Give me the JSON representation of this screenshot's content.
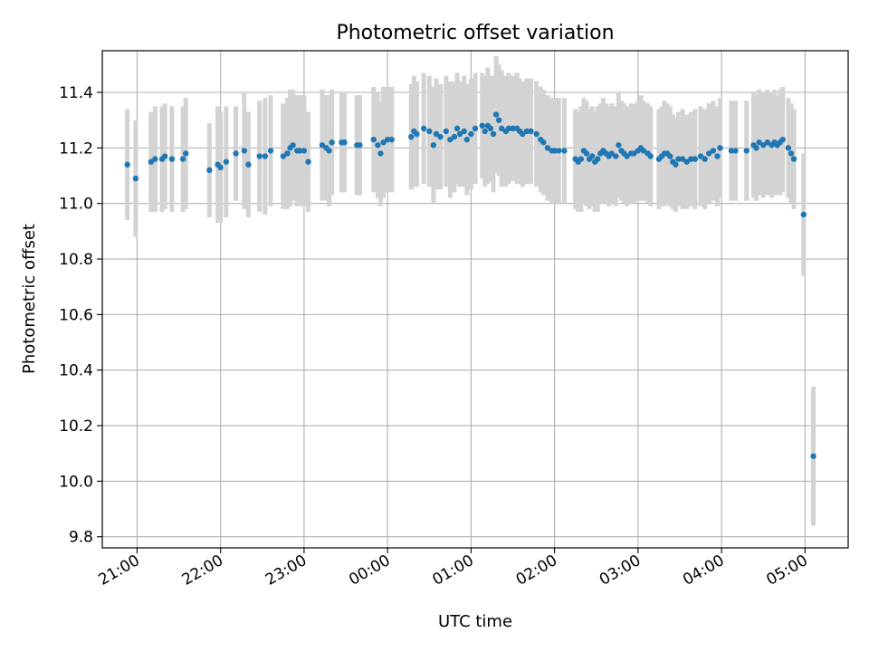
{
  "chart_data": {
    "type": "scatter",
    "title": "Photometric offset variation",
    "xlabel": "UTC time",
    "ylabel": "Photometric offset",
    "x_unit": "UTC time (hh:mm), times after midnight shown as 24:xx+",
    "xlim": [
      "20:35",
      "05:31"
    ],
    "ylim": [
      9.76,
      11.55
    ],
    "x_ticks": [
      "21:00",
      "22:00",
      "23:00",
      "00:00",
      "01:00",
      "02:00",
      "03:00",
      "04:00",
      "05:00"
    ],
    "y_ticks": [
      9.8,
      10.0,
      10.2,
      10.4,
      10.6,
      10.8,
      11.0,
      11.2,
      11.4
    ],
    "y_tick_labels": [
      "9.8",
      "10.0",
      "10.2",
      "10.4",
      "10.6",
      "10.8",
      "11.0",
      "11.2",
      "11.4"
    ],
    "x_tick_rotation_deg": 30,
    "grid": true,
    "marker_color": "#1f77b4",
    "errorbar_color": "#d3d3d3",
    "series": [
      {
        "points": [
          [
            "20:53",
            11.14,
            0.2
          ],
          [
            "20:59",
            11.09,
            0.21
          ],
          [
            "21:10",
            11.15,
            0.18
          ],
          [
            "21:13",
            11.16,
            0.19
          ],
          [
            "21:18",
            11.16,
            0.19
          ],
          [
            "21:20",
            11.17,
            0.19
          ],
          [
            "21:25",
            11.16,
            0.19
          ],
          [
            "21:33",
            11.16,
            0.19
          ],
          [
            "21:35",
            11.18,
            0.2
          ],
          [
            "21:52",
            11.12,
            0.17
          ],
          [
            "21:58",
            11.14,
            0.21
          ],
          [
            "22:00",
            11.13,
            0.2
          ],
          [
            "22:04",
            11.15,
            0.2
          ],
          [
            "22:11",
            11.18,
            0.17
          ],
          [
            "22:17",
            11.19,
            0.21
          ],
          [
            "22:20",
            11.14,
            0.19
          ],
          [
            "22:28",
            11.17,
            0.2
          ],
          [
            "22:32",
            11.17,
            0.21
          ],
          [
            "22:36",
            11.19,
            0.2
          ],
          [
            "22:45",
            11.17,
            0.19
          ],
          [
            "22:48",
            11.18,
            0.2
          ],
          [
            "22:50",
            11.2,
            0.21
          ],
          [
            "22:52",
            11.21,
            0.2
          ],
          [
            "22:55",
            11.19,
            0.2
          ],
          [
            "22:57",
            11.19,
            0.2
          ],
          [
            "23:00",
            11.19,
            0.2
          ],
          [
            "23:03",
            11.15,
            0.18
          ],
          [
            "23:13",
            11.21,
            0.2
          ],
          [
            "23:16",
            11.2,
            0.19
          ],
          [
            "23:18",
            11.19,
            0.2
          ],
          [
            "23:20",
            11.22,
            0.19
          ],
          [
            "23:27",
            11.22,
            0.18
          ],
          [
            "23:29",
            11.22,
            0.18
          ],
          [
            "23:38",
            11.21,
            0.18
          ],
          [
            "23:40",
            11.21,
            0.18
          ],
          [
            "23:50",
            11.23,
            0.19
          ],
          [
            "23:53",
            11.21,
            0.19
          ],
          [
            "23:55",
            11.18,
            0.19
          ],
          [
            "23:57",
            11.22,
            0.2
          ],
          [
            "24:00",
            11.23,
            0.19
          ],
          [
            "24:03",
            11.23,
            0.19
          ],
          [
            "24:17",
            11.24,
            0.19
          ],
          [
            "24:19",
            11.26,
            0.2
          ],
          [
            "24:21",
            11.25,
            0.19
          ],
          [
            "24:26",
            11.27,
            0.2
          ],
          [
            "24:30",
            11.26,
            0.2
          ],
          [
            "24:33",
            11.21,
            0.21
          ],
          [
            "24:35",
            11.25,
            0.2
          ],
          [
            "24:38",
            11.24,
            0.19
          ],
          [
            "24:42",
            11.26,
            0.2
          ],
          [
            "24:45",
            11.23,
            0.21
          ],
          [
            "24:48",
            11.24,
            0.2
          ],
          [
            "24:50",
            11.27,
            0.2
          ],
          [
            "24:52",
            11.25,
            0.19
          ],
          [
            "24:55",
            11.26,
            0.2
          ],
          [
            "24:57",
            11.23,
            0.2
          ],
          [
            "25:00",
            11.25,
            0.2
          ],
          [
            "25:03",
            11.27,
            0.2
          ],
          [
            "25:08",
            11.28,
            0.19
          ],
          [
            "25:10",
            11.26,
            0.2
          ],
          [
            "25:12",
            11.28,
            0.21
          ],
          [
            "25:14",
            11.27,
            0.19
          ],
          [
            "25:16",
            11.25,
            0.21
          ],
          [
            "25:18",
            11.32,
            0.21
          ],
          [
            "25:20",
            11.3,
            0.2
          ],
          [
            "25:22",
            11.27,
            0.21
          ],
          [
            "25:25",
            11.26,
            0.2
          ],
          [
            "25:27",
            11.27,
            0.2
          ],
          [
            "25:30",
            11.27,
            0.19
          ],
          [
            "25:33",
            11.27,
            0.2
          ],
          [
            "25:35",
            11.26,
            0.19
          ],
          [
            "25:37",
            11.25,
            0.19
          ],
          [
            "25:40",
            11.26,
            0.19
          ],
          [
            "25:43",
            11.26,
            0.19
          ],
          [
            "25:47",
            11.25,
            0.19
          ],
          [
            "25:50",
            11.23,
            0.19
          ],
          [
            "25:52",
            11.22,
            0.19
          ],
          [
            "25:55",
            11.2,
            0.19
          ],
          [
            "25:58",
            11.19,
            0.19
          ],
          [
            "26:00",
            11.19,
            0.19
          ],
          [
            "26:03",
            11.19,
            0.19
          ],
          [
            "26:07",
            11.19,
            0.19
          ],
          [
            "26:15",
            11.16,
            0.18
          ],
          [
            "26:17",
            11.15,
            0.18
          ],
          [
            "26:19",
            11.16,
            0.19
          ],
          [
            "26:21",
            11.19,
            0.19
          ],
          [
            "26:23",
            11.18,
            0.19
          ],
          [
            "26:25",
            11.16,
            0.18
          ],
          [
            "26:27",
            11.17,
            0.18
          ],
          [
            "26:29",
            11.15,
            0.18
          ],
          [
            "26:31",
            11.16,
            0.19
          ],
          [
            "26:33",
            11.18,
            0.18
          ],
          [
            "26:35",
            11.19,
            0.19
          ],
          [
            "26:37",
            11.18,
            0.18
          ],
          [
            "26:39",
            11.17,
            0.18
          ],
          [
            "26:41",
            11.18,
            0.18
          ],
          [
            "26:44",
            11.17,
            0.18
          ],
          [
            "26:46",
            11.21,
            0.19
          ],
          [
            "26:48",
            11.19,
            0.18
          ],
          [
            "26:50",
            11.18,
            0.18
          ],
          [
            "26:52",
            11.17,
            0.18
          ],
          [
            "26:55",
            11.18,
            0.18
          ],
          [
            "26:57",
            11.18,
            0.18
          ],
          [
            "27:00",
            11.19,
            0.18
          ],
          [
            "27:02",
            11.2,
            0.19
          ],
          [
            "27:04",
            11.19,
            0.18
          ],
          [
            "27:07",
            11.18,
            0.18
          ],
          [
            "27:09",
            11.17,
            0.18
          ],
          [
            "27:15",
            11.16,
            0.18
          ],
          [
            "27:17",
            11.17,
            0.18
          ],
          [
            "27:19",
            11.18,
            0.19
          ],
          [
            "27:21",
            11.18,
            0.18
          ],
          [
            "27:23",
            11.17,
            0.18
          ],
          [
            "27:25",
            11.15,
            0.17
          ],
          [
            "27:27",
            11.14,
            0.17
          ],
          [
            "27:29",
            11.16,
            0.17
          ],
          [
            "27:32",
            11.16,
            0.18
          ],
          [
            "27:35",
            11.15,
            0.17
          ],
          [
            "27:38",
            11.16,
            0.17
          ],
          [
            "27:41",
            11.16,
            0.18
          ],
          [
            "27:45",
            11.17,
            0.18
          ],
          [
            "27:48",
            11.16,
            0.18
          ],
          [
            "27:51",
            11.18,
            0.18
          ],
          [
            "27:54",
            11.19,
            0.18
          ],
          [
            "27:57",
            11.17,
            0.18
          ],
          [
            "27:59",
            11.2,
            0.18
          ],
          [
            "28:07",
            11.19,
            0.18
          ],
          [
            "28:10",
            11.19,
            0.18
          ],
          [
            "28:18",
            11.19,
            0.18
          ],
          [
            "28:23",
            11.21,
            0.19
          ],
          [
            "28:25",
            11.2,
            0.19
          ],
          [
            "28:27",
            11.22,
            0.19
          ],
          [
            "28:30",
            11.21,
            0.19
          ],
          [
            "28:33",
            11.22,
            0.19
          ],
          [
            "28:36",
            11.21,
            0.19
          ],
          [
            "28:38",
            11.22,
            0.19
          ],
          [
            "28:40",
            11.21,
            0.18
          ],
          [
            "28:42",
            11.22,
            0.19
          ],
          [
            "28:44",
            11.23,
            0.19
          ],
          [
            "28:48",
            11.2,
            0.18
          ],
          [
            "28:50",
            11.18,
            0.18
          ],
          [
            "28:52",
            11.16,
            0.18
          ],
          [
            "28:59",
            10.96,
            0.22
          ],
          [
            "29:06",
            10.09,
            0.25
          ]
        ]
      }
    ]
  }
}
